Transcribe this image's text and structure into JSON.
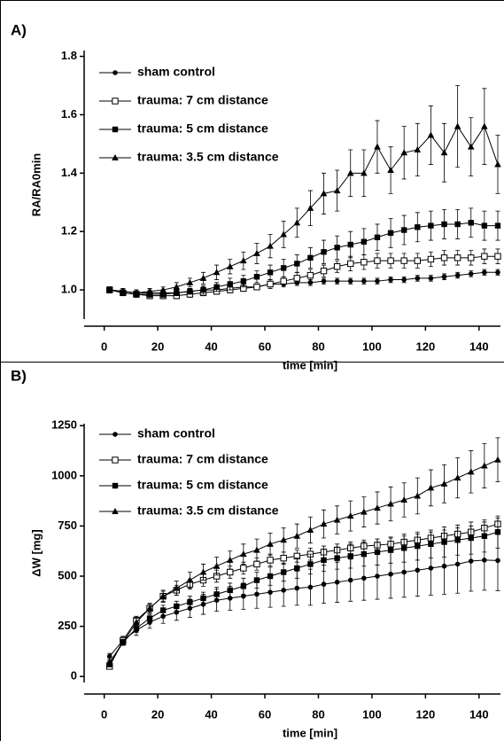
{
  "chart_data": [
    {
      "type": "line",
      "title": "A)",
      "y_label": "RA/RA0min",
      "x_label": "time [min]",
      "legend": "upper left",
      "x": [
        2,
        7,
        12,
        17,
        22,
        27,
        32,
        37,
        42,
        47,
        52,
        57,
        62,
        67,
        72,
        77,
        82,
        87,
        92,
        97,
        102,
        107,
        112,
        117,
        122,
        127,
        132,
        137,
        142,
        147
      ],
      "xlim": [
        -7.5,
        148
      ],
      "xticks": [
        0,
        20,
        40,
        60,
        80,
        100,
        120,
        140
      ],
      "ylim": [
        0.9,
        1.82
      ],
      "yticks": [
        {
          "value": 1,
          "label": "1.0"
        },
        1.2,
        1.4,
        1.6,
        1.8
      ],
      "series": [
        {
          "name": "sham control",
          "color": "#000000",
          "marker": "circle",
          "values": [
            1.0,
            0.995,
            0.99,
            0.99,
            0.99,
            0.99,
            0.995,
            1.0,
            1.0,
            1.005,
            1.01,
            1.01,
            1.02,
            1.02,
            1.025,
            1.025,
            1.03,
            1.03,
            1.03,
            1.03,
            1.03,
            1.035,
            1.035,
            1.04,
            1.04,
            1.045,
            1.05,
            1.055,
            1.06,
            1.06
          ],
          "errors": [
            0.01,
            0.01,
            0.01,
            0.01,
            0.01,
            0.01,
            0.01,
            0.01,
            0.01,
            0.01,
            0.01,
            0.01,
            0.01,
            0.01,
            0.01,
            0.01,
            0.01,
            0.01,
            0.01,
            0.01,
            0.01,
            0.01,
            0.01,
            0.01,
            0.01,
            0.01,
            0.01,
            0.01,
            0.01,
            0.01
          ]
        },
        {
          "name": "trauma: 7 cm distance",
          "color": "#000000",
          "marker": "open-square",
          "values": [
            1.0,
            0.99,
            0.985,
            0.98,
            0.98,
            0.98,
            0.985,
            0.99,
            0.995,
            1.0,
            1.005,
            1.01,
            1.02,
            1.03,
            1.04,
            1.05,
            1.065,
            1.08,
            1.09,
            1.095,
            1.1,
            1.1,
            1.1,
            1.1,
            1.105,
            1.11,
            1.11,
            1.11,
            1.115,
            1.115
          ],
          "errors": [
            0.01,
            0.01,
            0.01,
            0.01,
            0.01,
            0.01,
            0.01,
            0.01,
            0.01,
            0.01,
            0.01,
            0.01,
            0.015,
            0.015,
            0.02,
            0.02,
            0.02,
            0.02,
            0.025,
            0.025,
            0.025,
            0.025,
            0.025,
            0.025,
            0.025,
            0.025,
            0.025,
            0.025,
            0.025,
            0.025
          ]
        },
        {
          "name": "trauma: 5 cm distance",
          "color": "#000000",
          "marker": "square",
          "values": [
            1.0,
            0.99,
            0.985,
            0.985,
            0.985,
            0.99,
            0.995,
            1.0,
            1.01,
            1.02,
            1.03,
            1.045,
            1.06,
            1.075,
            1.09,
            1.11,
            1.13,
            1.145,
            1.155,
            1.165,
            1.18,
            1.195,
            1.205,
            1.215,
            1.22,
            1.225,
            1.225,
            1.23,
            1.22,
            1.22
          ],
          "errors": [
            0.01,
            0.01,
            0.01,
            0.01,
            0.01,
            0.01,
            0.01,
            0.015,
            0.015,
            0.02,
            0.02,
            0.02,
            0.025,
            0.03,
            0.03,
            0.035,
            0.04,
            0.04,
            0.045,
            0.045,
            0.045,
            0.05,
            0.05,
            0.05,
            0.05,
            0.05,
            0.05,
            0.05,
            0.05,
            0.05
          ]
        },
        {
          "name": "trauma: 3.5 cm distance",
          "color": "#000000",
          "marker": "triangle",
          "values": [
            1.0,
            0.995,
            0.99,
            0.995,
            1.0,
            1.01,
            1.025,
            1.04,
            1.06,
            1.08,
            1.1,
            1.125,
            1.15,
            1.19,
            1.23,
            1.28,
            1.33,
            1.34,
            1.4,
            1.4,
            1.49,
            1.41,
            1.47,
            1.48,
            1.53,
            1.47,
            1.56,
            1.49,
            1.56,
            1.43
          ],
          "errors": [
            0.01,
            0.01,
            0.01,
            0.01,
            0.01,
            0.015,
            0.015,
            0.02,
            0.025,
            0.025,
            0.03,
            0.035,
            0.04,
            0.045,
            0.05,
            0.06,
            0.07,
            0.07,
            0.08,
            0.08,
            0.09,
            0.08,
            0.09,
            0.09,
            0.1,
            0.1,
            0.14,
            0.1,
            0.13,
            0.1
          ]
        }
      ]
    },
    {
      "type": "line",
      "title": "B)",
      "y_label": "ΔW [mg]",
      "x_label": "time [min]",
      "legend": "upper left",
      "x": [
        2,
        7,
        12,
        17,
        22,
        27,
        32,
        37,
        42,
        47,
        52,
        57,
        62,
        67,
        72,
        77,
        82,
        87,
        92,
        97,
        102,
        107,
        112,
        117,
        122,
        127,
        132,
        137,
        142,
        147
      ],
      "xlim": [
        -7.5,
        148
      ],
      "xticks": [
        0,
        20,
        40,
        60,
        80,
        100,
        120,
        140
      ],
      "ylim": [
        -30,
        1260
      ],
      "yticks": [
        0,
        250,
        500,
        750,
        1000,
        1250
      ],
      "series": [
        {
          "name": "sham control",
          "color": "#000000",
          "marker": "circle",
          "values": [
            100,
            180,
            230,
            270,
            300,
            320,
            340,
            360,
            380,
            390,
            400,
            410,
            420,
            430,
            440,
            445,
            460,
            470,
            480,
            490,
            500,
            510,
            520,
            530,
            540,
            550,
            560,
            575,
            580,
            578
          ],
          "errors": [
            15,
            20,
            25,
            30,
            35,
            40,
            45,
            50,
            55,
            60,
            65,
            70,
            75,
            80,
            85,
            90,
            95,
            100,
            105,
            110,
            115,
            120,
            125,
            130,
            135,
            140,
            145,
            150,
            150,
            150
          ]
        },
        {
          "name": "trauma: 7 cm distance",
          "color": "#000000",
          "marker": "open-square",
          "values": [
            50,
            180,
            280,
            340,
            400,
            430,
            460,
            480,
            500,
            520,
            540,
            560,
            580,
            590,
            600,
            610,
            620,
            630,
            640,
            650,
            655,
            660,
            670,
            680,
            690,
            700,
            710,
            720,
            740,
            760
          ],
          "errors": [
            10,
            15,
            20,
            20,
            25,
            25,
            25,
            30,
            30,
            30,
            30,
            30,
            30,
            30,
            30,
            30,
            30,
            30,
            30,
            30,
            30,
            30,
            30,
            30,
            30,
            30,
            30,
            30,
            30,
            30
          ]
        },
        {
          "name": "trauma: 5 cm distance",
          "color": "#000000",
          "marker": "square",
          "values": [
            60,
            170,
            240,
            290,
            330,
            350,
            370,
            390,
            410,
            430,
            450,
            480,
            500,
            520,
            540,
            560,
            580,
            590,
            600,
            610,
            620,
            630,
            640,
            650,
            660,
            670,
            680,
            690,
            700,
            720
          ],
          "errors": [
            10,
            15,
            20,
            20,
            25,
            25,
            30,
            30,
            35,
            35,
            40,
            40,
            45,
            45,
            50,
            50,
            55,
            55,
            60,
            60,
            65,
            65,
            70,
            70,
            70,
            75,
            75,
            80,
            80,
            80
          ]
        },
        {
          "name": "trauma: 3.5 cm distance",
          "color": "#000000",
          "marker": "triangle",
          "values": [
            70,
            170,
            270,
            340,
            400,
            440,
            480,
            520,
            550,
            580,
            610,
            630,
            660,
            680,
            700,
            730,
            760,
            780,
            800,
            820,
            840,
            860,
            880,
            900,
            940,
            960,
            990,
            1020,
            1050,
            1080
          ],
          "errors": [
            10,
            15,
            20,
            25,
            30,
            35,
            40,
            40,
            45,
            45,
            50,
            55,
            55,
            60,
            60,
            65,
            70,
            70,
            75,
            75,
            80,
            85,
            85,
            90,
            90,
            95,
            100,
            105,
            110,
            110
          ]
        }
      ]
    }
  ]
}
